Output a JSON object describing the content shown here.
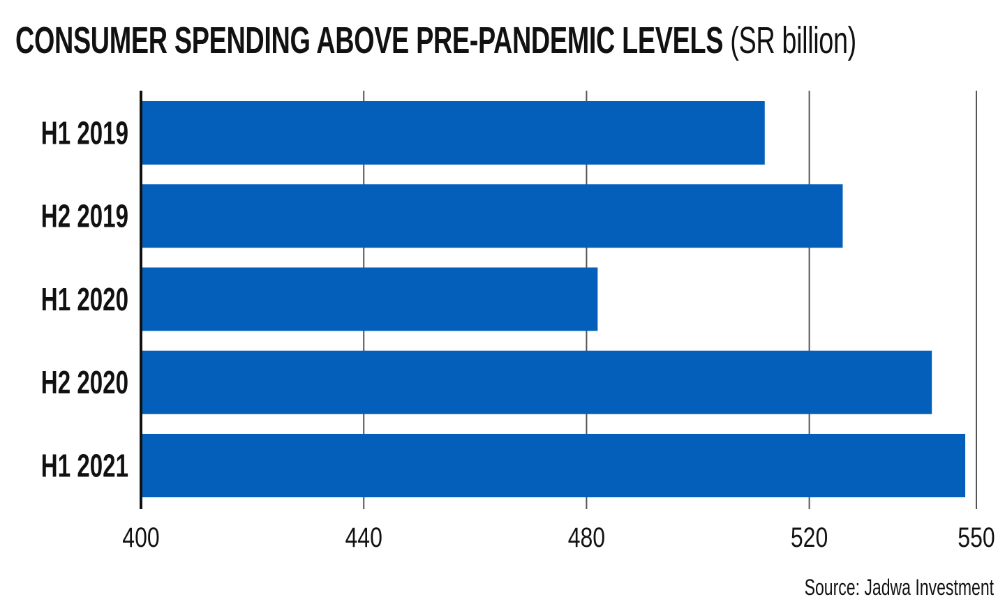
{
  "chart_data": {
    "type": "bar",
    "orientation": "horizontal",
    "title": "CONSUMER SPENDING ABOVE PRE-PANDEMIC LEVELS",
    "title_unit": "(SR billion)",
    "categories": [
      "H1 2019",
      "H2 2019",
      "H1 2020",
      "H2 2020",
      "H1 2021"
    ],
    "values": [
      512,
      526,
      482,
      542,
      548
    ],
    "xlim": [
      400,
      550
    ],
    "x_ticks": [
      "400",
      "440",
      "480",
      "520",
      "550"
    ],
    "xlabel": "",
    "ylabel": "",
    "grid": "vertical",
    "legend": "none",
    "bar_color": "#035fba",
    "source": "Source: Jadwa Investment"
  }
}
